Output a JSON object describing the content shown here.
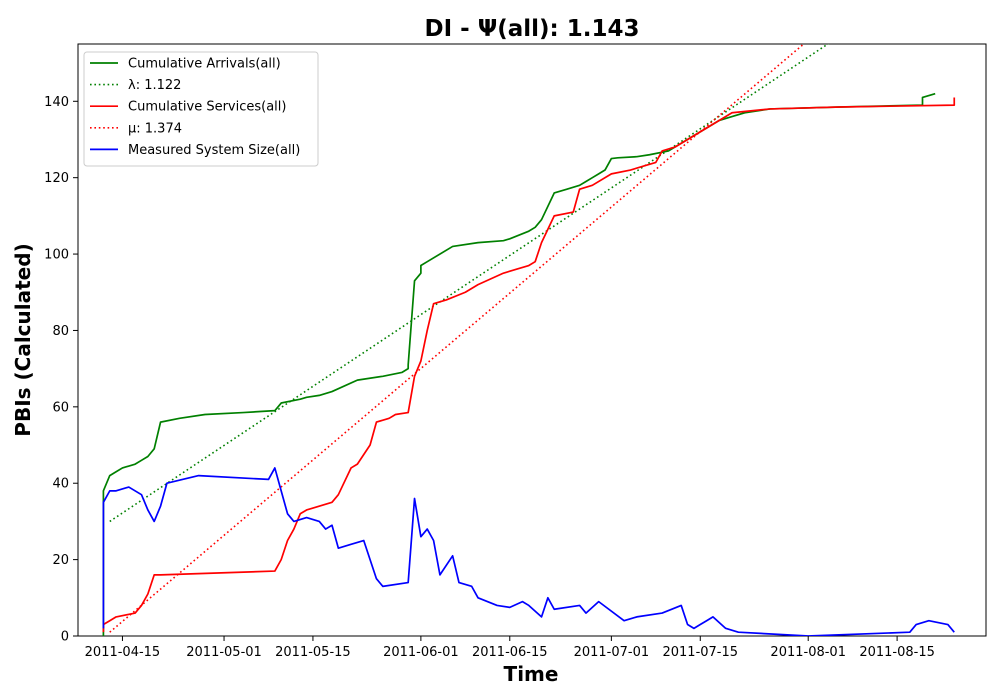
{
  "chart_data": {
    "type": "line",
    "title": "DI -  Ψ(all): 1.143",
    "xlabel": "Time",
    "ylabel": "PBIs (Calculated)",
    "x_type": "date",
    "xlim": [
      "2011-04-08",
      "2011-08-29"
    ],
    "ylim": [
      0,
      155
    ],
    "x_ticks": [
      "2011-04-15",
      "2011-05-01",
      "2011-05-15",
      "2011-06-01",
      "2011-06-15",
      "2011-07-01",
      "2011-07-15",
      "2011-08-01",
      "2011-08-15"
    ],
    "y_ticks": [
      0,
      20,
      40,
      60,
      80,
      100,
      120,
      140
    ],
    "grid": false,
    "legend_position": "top-left",
    "series": [
      {
        "name": "Cumulative Arrivals(all)",
        "style": "solid",
        "color": "#008000",
        "x": [
          "2011-04-12",
          "2011-04-12",
          "2011-04-13",
          "2011-04-14",
          "2011-04-15",
          "2011-04-17",
          "2011-04-18",
          "2011-04-19",
          "2011-04-20",
          "2011-04-21",
          "2011-04-24",
          "2011-04-28",
          "2011-05-04",
          "2011-05-09",
          "2011-05-10",
          "2011-05-13",
          "2011-05-14",
          "2011-05-16",
          "2011-05-18",
          "2011-05-22",
          "2011-05-26",
          "2011-05-29",
          "2011-05-30",
          "2011-05-30",
          "2011-05-31",
          "2011-06-01",
          "2011-06-01",
          "2011-06-02",
          "2011-06-06",
          "2011-06-10",
          "2011-06-14",
          "2011-06-15",
          "2011-06-18",
          "2011-06-19",
          "2011-06-20",
          "2011-06-22",
          "2011-06-24",
          "2011-06-26",
          "2011-06-27",
          "2011-06-28",
          "2011-06-29",
          "2011-06-30",
          "2011-07-01",
          "2011-07-02",
          "2011-07-05",
          "2011-07-07",
          "2011-07-10",
          "2011-07-12",
          "2011-07-13",
          "2011-07-14",
          "2011-07-16",
          "2011-07-18",
          "2011-07-20",
          "2011-07-22",
          "2011-07-26",
          "2011-08-06",
          "2011-08-19",
          "2011-08-19",
          "2011-08-21"
        ],
        "values": [
          0,
          38,
          42,
          43,
          44,
          45,
          46,
          47,
          49,
          56,
          57,
          58,
          58.5,
          59,
          61,
          62,
          62.5,
          63,
          64,
          67,
          68,
          69,
          70,
          71,
          93,
          95,
          97,
          98,
          102,
          103,
          103.5,
          104,
          106,
          107,
          109,
          116,
          117,
          118,
          119,
          120,
          121,
          122,
          125,
          125.2,
          125.5,
          126,
          127,
          129,
          130,
          131,
          133,
          135,
          136,
          137,
          138,
          138.5,
          139,
          141,
          142
        ]
      },
      {
        "name": "λ: 1.122",
        "style": "dotted",
        "color": "#008000",
        "x": [
          "2011-04-13",
          "2011-08-05"
        ],
        "values": [
          30,
          156
        ]
      },
      {
        "name": "Cumulative Services(all)",
        "style": "solid",
        "color": "#ff0000",
        "x": [
          "2011-04-12",
          "2011-04-12",
          "2011-04-13",
          "2011-04-14",
          "2011-04-17",
          "2011-04-18",
          "2011-04-19",
          "2011-04-20",
          "2011-04-21",
          "2011-05-09",
          "2011-05-10",
          "2011-05-11",
          "2011-05-12",
          "2011-05-13",
          "2011-05-14",
          "2011-05-15",
          "2011-05-18",
          "2011-05-19",
          "2011-05-21",
          "2011-05-22",
          "2011-05-24",
          "2011-05-25",
          "2011-05-27",
          "2011-05-28",
          "2011-05-30",
          "2011-05-31",
          "2011-06-01",
          "2011-06-02",
          "2011-06-03",
          "2011-06-05",
          "2011-06-08",
          "2011-06-10",
          "2011-06-14",
          "2011-06-16",
          "2011-06-18",
          "2011-06-19",
          "2011-06-20",
          "2011-06-22",
          "2011-06-25",
          "2011-06-26",
          "2011-06-28",
          "2011-07-01",
          "2011-07-04",
          "2011-07-08",
          "2011-07-09",
          "2011-07-11",
          "2011-07-13",
          "2011-07-16",
          "2011-07-18",
          "2011-07-20",
          "2011-07-26",
          "2011-08-06",
          "2011-08-24",
          "2011-08-24"
        ],
        "values": [
          1,
          3,
          4,
          5,
          6,
          8,
          11,
          16,
          16,
          17,
          20,
          25,
          28,
          32,
          33,
          33.5,
          35,
          37,
          44,
          45,
          50,
          56,
          57,
          58,
          58.5,
          68,
          72,
          80,
          87,
          88,
          90,
          92,
          95,
          96,
          97,
          98,
          103,
          110,
          111,
          117,
          118,
          121,
          122,
          124,
          127,
          128,
          130,
          133,
          135,
          137,
          138,
          138.5,
          139,
          141
        ]
      },
      {
        "name": "μ: 1.374",
        "style": "dotted",
        "color": "#ff0000",
        "x": [
          "2011-04-13",
          "2011-08-01"
        ],
        "values": [
          1,
          156
        ]
      },
      {
        "name": "Measured System Size(all)",
        "style": "solid",
        "color": "#0000ff",
        "x": [
          "2011-04-12",
          "2011-04-12",
          "2011-04-13",
          "2011-04-14",
          "2011-04-16",
          "2011-04-18",
          "2011-04-19",
          "2011-04-20",
          "2011-04-21",
          "2011-04-22",
          "2011-04-27",
          "2011-05-08",
          "2011-05-09",
          "2011-05-10",
          "2011-05-11",
          "2011-05-12",
          "2011-05-14",
          "2011-05-16",
          "2011-05-17",
          "2011-05-18",
          "2011-05-19",
          "2011-05-21",
          "2011-05-23",
          "2011-05-25",
          "2011-05-26",
          "2011-05-30",
          "2011-05-31",
          "2011-06-01",
          "2011-06-02",
          "2011-06-03",
          "2011-06-04",
          "2011-06-06",
          "2011-06-07",
          "2011-06-09",
          "2011-06-10",
          "2011-06-13",
          "2011-06-15",
          "2011-06-17",
          "2011-06-18",
          "2011-06-20",
          "2011-06-21",
          "2011-06-22",
          "2011-06-26",
          "2011-06-27",
          "2011-06-29",
          "2011-07-03",
          "2011-07-05",
          "2011-07-09",
          "2011-07-12",
          "2011-07-13",
          "2011-07-14",
          "2011-07-15",
          "2011-07-16",
          "2011-07-17",
          "2011-07-19",
          "2011-07-21",
          "2011-08-01",
          "2011-08-17",
          "2011-08-18",
          "2011-08-20",
          "2011-08-23",
          "2011-08-24"
        ],
        "values": [
          2,
          35,
          38,
          38,
          39,
          37,
          33,
          30,
          34,
          40,
          42,
          41,
          44,
          38,
          32,
          30,
          31,
          30,
          28,
          29,
          23,
          24,
          25,
          15,
          13,
          14,
          36,
          26,
          28,
          25,
          16,
          21,
          14,
          13,
          10,
          8,
          7.5,
          9,
          8,
          5,
          10,
          7,
          8,
          6,
          9,
          4,
          5,
          6,
          8,
          3,
          2,
          3,
          4,
          5,
          2,
          1,
          0,
          1,
          3,
          4,
          3,
          1
        ]
      }
    ]
  }
}
